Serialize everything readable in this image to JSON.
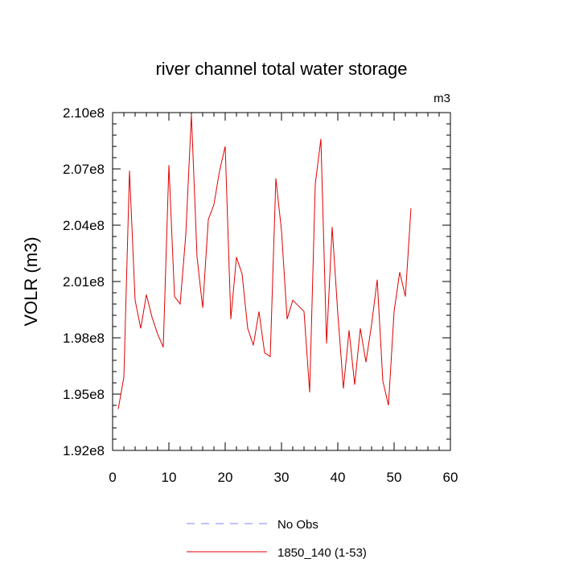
{
  "chart_data": {
    "type": "line",
    "title": "river channel total water storage",
    "units_label": "m3",
    "xlabel": "",
    "ylabel": "VOLR  (m3)",
    "xlim": [
      0,
      60
    ],
    "ylim": [
      192000000.0,
      210000000.0
    ],
    "x_ticks": [
      0,
      10,
      20,
      30,
      40,
      50,
      60
    ],
    "y_ticks": [
      192000000.0,
      195000000.0,
      198000000.0,
      201000000.0,
      204000000.0,
      207000000.0,
      210000000.0
    ],
    "y_tick_labels": [
      "1.92e8",
      "1.95e8",
      "1.98e8",
      "2.01e8",
      "2.04e8",
      "2.07e8",
      "2.10e8"
    ],
    "grid": false,
    "legend_position": "bottom",
    "legend": [
      {
        "name": "No Obs",
        "style": "dashed",
        "color": "#8080ff"
      },
      {
        "name": "1850_140 (1-53)",
        "style": "solid",
        "color": "#e00000"
      }
    ],
    "series": [
      {
        "name": "1850_140 (1-53)",
        "color": "#e00000",
        "x": [
          1,
          2,
          3,
          4,
          5,
          6,
          7,
          8,
          9,
          10,
          11,
          12,
          13,
          14,
          15,
          16,
          17,
          18,
          19,
          20,
          21,
          22,
          23,
          24,
          25,
          26,
          27,
          28,
          29,
          30,
          31,
          32,
          33,
          34,
          35,
          36,
          37,
          38,
          39,
          40,
          41,
          42,
          43,
          44,
          45,
          46,
          47,
          48,
          49,
          50,
          51,
          52,
          53
        ],
        "y": [
          194200000.0,
          195900000.0,
          206900000.0,
          200000000.0,
          198500000.0,
          200300000.0,
          199100000.0,
          198200000.0,
          197500000.0,
          207200000.0,
          200200000.0,
          199800000.0,
          203500000.0,
          209900000.0,
          202300000.0,
          199600000.0,
          204300000.0,
          205100000.0,
          206900000.0,
          208200000.0,
          199000000.0,
          202300000.0,
          201400000.0,
          198500000.0,
          197600000.0,
          199400000.0,
          197200000.0,
          197000000.0,
          206500000.0,
          203700000.0,
          199000000.0,
          200000000.0,
          199700000.0,
          199400000.0,
          195100000.0,
          206200000.0,
          208600000.0,
          197700000.0,
          203900000.0,
          199300000.0,
          195300000.0,
          198400000.0,
          195500000.0,
          198500000.0,
          196700000.0,
          198700000.0,
          201100000.0,
          195700000.0,
          194400000.0,
          199400000.0,
          201500000.0,
          200200000.0,
          204900000.0
        ]
      }
    ]
  }
}
